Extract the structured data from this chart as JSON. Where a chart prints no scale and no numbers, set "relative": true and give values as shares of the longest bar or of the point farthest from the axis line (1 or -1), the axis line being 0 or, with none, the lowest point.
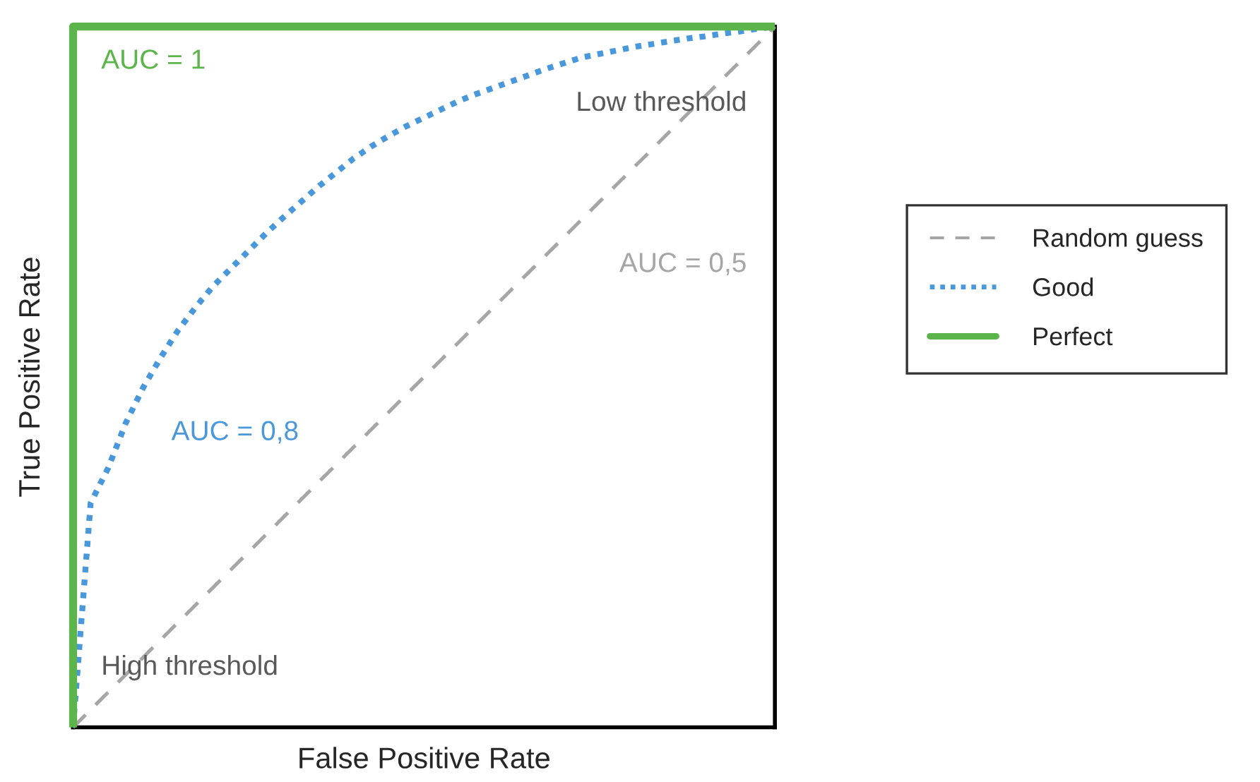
{
  "chart_data": {
    "type": "line",
    "relative": true,
    "xlabel": "False Positive Rate",
    "ylabel": "True Positive Rate",
    "categories": [
      null,
      null,
      null,
      null,
      null,
      null,
      null,
      null,
      null,
      null,
      null,
      null,
      null,
      null,
      null,
      null,
      null,
      null,
      null,
      null,
      null,
      null,
      null,
      null,
      null,
      null,
      null,
      null,
      null,
      null,
      null,
      null,
      null,
      null,
      null,
      null,
      null,
      null,
      null,
      null,
      null
    ],
    "series": [
      {
        "name": "Random guess",
        "color": "#a6a6a6",
        "line_style": "dashed",
        "values": [
          0,
          0.025,
          0.05,
          0.075,
          0.1,
          0.125,
          0.15,
          0.175,
          0.2,
          0.225,
          0.25,
          0.275,
          0.3,
          0.325,
          0.35,
          0.375,
          0.4,
          0.425,
          0.45,
          0.475,
          0.5,
          0.525,
          0.55,
          0.575,
          0.6,
          0.625,
          0.65,
          0.675,
          0.7,
          0.725,
          0.75,
          0.775,
          0.8,
          0.825,
          0.85,
          0.875,
          0.9,
          0.925,
          0.95,
          0.975,
          1
        ]
      },
      {
        "name": "Good",
        "color": "#4a98dc",
        "line_style": "dotted",
        "values": [
          0,
          0.32,
          0.37,
          0.434,
          0.485,
          0.528,
          0.567,
          0.6,
          0.63,
          0.655,
          0.68,
          0.705,
          0.728,
          0.75,
          0.772,
          0.792,
          0.812,
          0.829,
          0.844,
          0.858,
          0.87,
          0.882,
          0.894,
          0.904,
          0.913,
          0.922,
          0.931,
          0.94,
          0.948,
          0.956,
          0.961,
          0.966,
          0.971,
          0.975,
          0.979,
          0.983,
          0.986,
          0.99,
          0.993,
          0.997,
          1
        ]
      },
      {
        "name": "Perfect",
        "type": "step",
        "color": "#5cb54a",
        "line_style": "solid",
        "values": [
          0,
          1,
          1,
          1,
          1,
          1,
          1,
          1,
          1,
          1,
          1,
          1,
          1,
          1,
          1,
          1,
          1,
          1,
          1,
          1,
          1,
          1,
          1,
          1,
          1,
          1,
          1,
          1,
          1,
          1,
          1,
          1,
          1,
          1,
          1,
          1,
          1,
          1,
          1,
          1,
          1
        ]
      }
    ],
    "annotations": [
      "AUC = 1",
      "Low threshold",
      "AUC = 0,5",
      "AUC = 0,8",
      "High threshold"
    ],
    "legend": "right",
    "grid": false
  }
}
